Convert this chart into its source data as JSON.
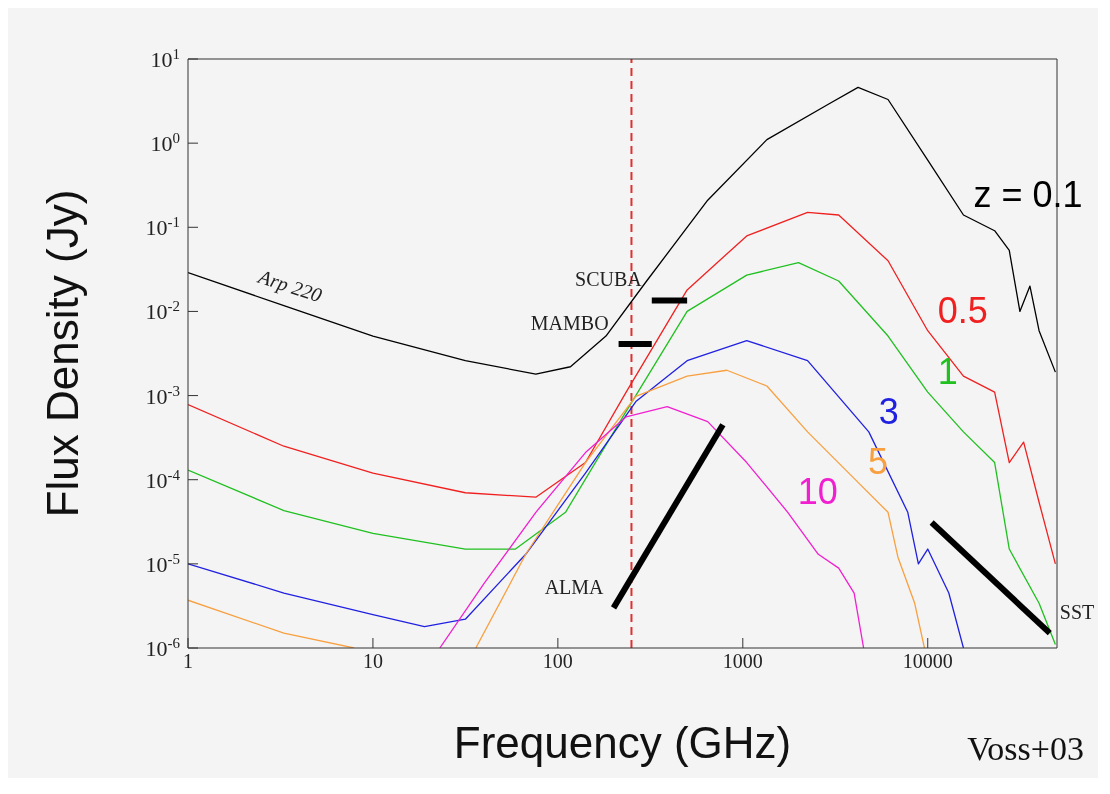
{
  "chart_data": {
    "type": "line",
    "xlabel": "Frequency (GHz)",
    "ylabel": "Flux Density (Jy)",
    "log": "xy",
    "marker": "none",
    "xlim": [
      1,
      50000
    ],
    "xticks": [
      1,
      10,
      100,
      1000,
      10000
    ],
    "ylim": [
      1e-06,
      10
    ],
    "yticks": [
      {
        "value": 10,
        "label": "10$^{1}$"
      },
      {
        "value": 1,
        "label": "10$^{0}$"
      },
      {
        "value": 0.1,
        "label": "10$^{-1}$"
      },
      {
        "value": 0.01,
        "label": "10$^{-2}$"
      },
      {
        "value": 0.001,
        "label": "10$^{-3}$"
      },
      {
        "value": 0.0001,
        "label": "10$^{-4}$"
      },
      {
        "value": 1e-05,
        "label": "10$^{-5}$"
      },
      {
        "value": 1e-06,
        "label": "10$^{-6}$"
      }
    ],
    "ref_lines": [
      {
        "axis": "x",
        "value": 250,
        "color": "#e03030",
        "line_style": "dashed"
      }
    ],
    "annotations": [
      {
        "text": "Arp 220",
        "x": 3.3,
        "y": 0.0117
      },
      "Voss+03"
    ],
    "series": [
      {
        "name": "z = 0.1",
        "color": "#000000",
        "x": [
          1,
          3.3,
          10,
          31.6,
          76,
          117,
          182,
          302,
          646,
          1350,
          2900,
          4200,
          6100,
          10000,
          15600,
          23000,
          27600,
          31500,
          35700,
          40000,
          49000
        ],
        "values": [
          0.029,
          0.0117,
          0.0051,
          0.0026,
          0.0018,
          0.0022,
          0.0051,
          0.023,
          0.21,
          1.1,
          2.9,
          4.6,
          3.3,
          0.63,
          0.14,
          0.091,
          0.053,
          0.01,
          0.02,
          0.0059,
          0.0019
        ]
      },
      {
        "name": "0.5",
        "color": "#f02020",
        "x": [
          1,
          3.3,
          10,
          31.6,
          76,
          141,
          234,
          500,
          1050,
          2240,
          3300,
          6100,
          10000,
          15600,
          23000,
          27600,
          33000,
          40000,
          49000
        ],
        "values": [
          0.00078,
          0.00025,
          0.00012,
          7e-05,
          6.2e-05,
          0.00016,
          0.0011,
          0.018,
          0.079,
          0.15,
          0.14,
          0.04,
          0.0059,
          0.0017,
          0.0011,
          0.00016,
          0.00028,
          5.4e-05,
          1e-05
        ]
      },
      {
        "name": "1",
        "color": "#20c020",
        "x": [
          1,
          3.3,
          10,
          31.6,
          59,
          110,
          234,
          500,
          1050,
          2000,
          3300,
          6100,
          10000,
          15600,
          23000,
          27600,
          40000,
          49000
        ],
        "values": [
          0.00013,
          4.3e-05,
          2.3e-05,
          1.5e-05,
          1.5e-05,
          4.1e-05,
          0.00065,
          0.01,
          0.027,
          0.038,
          0.023,
          0.0051,
          0.0011,
          0.00037,
          0.00016,
          1.5e-05,
          3.4e-06,
          1.1e-06
        ]
      },
      {
        "name": "3",
        "color": "#2020e0",
        "x": [
          1,
          3.3,
          10,
          19,
          31.6,
          67,
          141,
          264,
          500,
          1050,
          2240,
          4800,
          7800,
          8900,
          10000,
          13000,
          15600
        ],
        "values": [
          1e-05,
          4.5e-06,
          2.5e-06,
          1.8e-06,
          2.2e-06,
          1.3e-05,
          0.00012,
          0.00085,
          0.0026,
          0.0045,
          0.0026,
          0.00037,
          4.1e-05,
          1e-05,
          1.5e-05,
          4.5e-06,
          1e-06
        ]
      },
      {
        "name": "5",
        "color": "#f8a040",
        "x": [
          1,
          3.3,
          7.9,
          20,
          36,
          67,
          141,
          264,
          500,
          820,
          1350,
          2240,
          4200,
          6100,
          6900,
          8500,
          9600
        ],
        "values": [
          3.7e-06,
          1.5e-06,
          1e-06,
          null,
          1e-06,
          1.3e-05,
          0.00016,
          0.00098,
          0.0017,
          0.002,
          0.0013,
          0.00037,
          9.3e-05,
          4.1e-05,
          1.2e-05,
          3.4e-06,
          1e-06
        ]
      },
      {
        "name": "10",
        "color": "#f020d0",
        "x": [
          23,
          40,
          76,
          141,
          234,
          390,
          646,
          1050,
          1750,
          2560,
          3300,
          4000,
          4500
        ],
        "values": [
          1e-06,
          5.9e-06,
          4.1e-05,
          0.00021,
          0.00056,
          0.00074,
          0.00049,
          0.00016,
          4.1e-05,
          1.3e-05,
          8.9e-06,
          4.5e-06,
          1e-06
        ]
      },
      {
        "name": "ALMA",
        "color": "#000000",
        "x": [
          200,
          780
        ],
        "values": [
          3e-06,
          0.00045
        ]
      },
      {
        "name": "SST",
        "color": "#000000",
        "x": [
          10500,
          45700
        ],
        "values": [
          3.1e-05,
          1.5e-06
        ]
      },
      {
        "name": "MAMBO",
        "color": "#000000",
        "x": [
          213,
          322
        ],
        "values": [
          0.0041,
          0.0041
        ]
      },
      {
        "name": "SCUBA",
        "color": "#000000",
        "x": [
          322,
          500
        ],
        "values": [
          0.0135,
          0.0135
        ]
      }
    ]
  }
}
